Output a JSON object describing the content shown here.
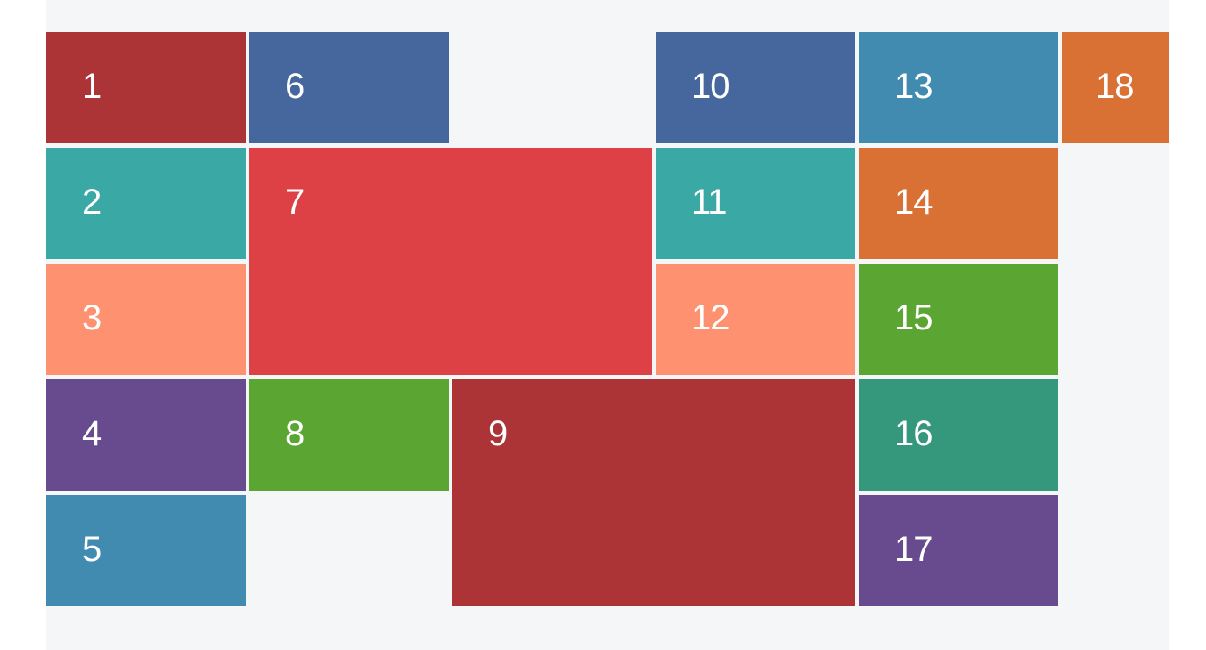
{
  "tiles": [
    {
      "label": "1",
      "color": "#ad3436"
    },
    {
      "label": "2",
      "color": "#3aa8a5"
    },
    {
      "label": "3",
      "color": "#fe9170"
    },
    {
      "label": "4",
      "color": "#684a8e"
    },
    {
      "label": "5",
      "color": "#428bb0"
    },
    {
      "label": "6",
      "color": "#46679e"
    },
    {
      "label": "7",
      "color": "#de4145"
    },
    {
      "label": "8",
      "color": "#5ba532"
    },
    {
      "label": "9",
      "color": "#ad3436"
    },
    {
      "label": "10",
      "color": "#46679e"
    },
    {
      "label": "11",
      "color": "#3aa8a5"
    },
    {
      "label": "12",
      "color": "#fe9170"
    },
    {
      "label": "13",
      "color": "#428bb0"
    },
    {
      "label": "14",
      "color": "#d97135"
    },
    {
      "label": "15",
      "color": "#5ba532"
    },
    {
      "label": "16",
      "color": "#35987c"
    },
    {
      "label": "17",
      "color": "#684a8e"
    },
    {
      "label": "18",
      "color": "#d97135"
    }
  ],
  "stage_background": "#f5f6f8"
}
